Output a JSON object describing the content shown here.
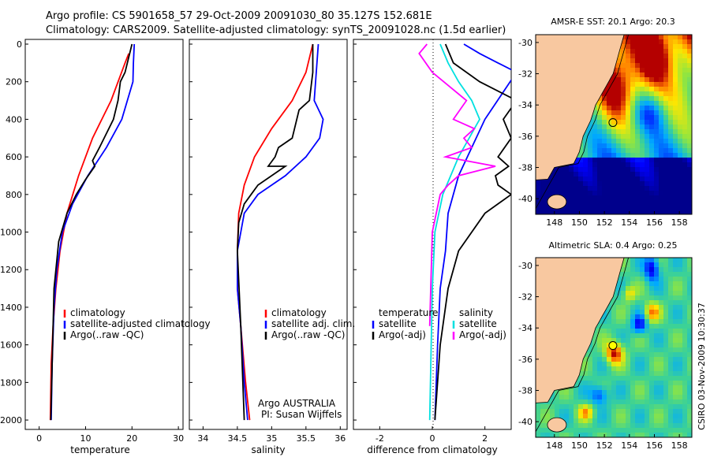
{
  "header": {
    "line1": "Argo profile: CS 5901658_57 29-Oct-2009 20091030_80 35.127S 152.681E",
    "line2": "Climatology: CARS2009. Satellite-adjusted climatology: synTS_20091028.nc (1.5d earlier)"
  },
  "chart_data": [
    {
      "type": "line",
      "id": "temperature",
      "xlabel": "temperature",
      "ylabel": "",
      "xlim": [
        -3,
        31
      ],
      "ylim": [
        0,
        2050
      ],
      "y_reversed": true,
      "xticks": [
        0,
        10,
        20,
        30
      ],
      "yticks": [
        0,
        200,
        400,
        600,
        800,
        1000,
        1200,
        1400,
        1600,
        1800,
        2000
      ],
      "legend": {
        "position": "lower-right",
        "entries": [
          "climatology",
          "satellite-adjusted climatology",
          "Argo(..raw -QC)"
        ]
      },
      "series": [
        {
          "name": "climatology",
          "color": "#ff0000",
          "x": [
            19.3,
            18.5,
            15.5,
            11.5,
            8.5,
            6.0,
            4.5,
            3.6,
            3.0,
            2.6,
            2.4
          ],
          "y": [
            50,
            100,
            300,
            500,
            700,
            900,
            1100,
            1300,
            1500,
            1700,
            2000
          ]
        },
        {
          "name": "satellite-adjusted climatology",
          "color": "#0000ff",
          "x": [
            20.5,
            20.3,
            20.2,
            17.8,
            14.5,
            10.5,
            7.2,
            5.0,
            3.8,
            3.2,
            2.8,
            2.6
          ],
          "y": [
            0,
            100,
            200,
            400,
            550,
            700,
            850,
            1000,
            1200,
            1400,
            1700,
            2000
          ]
        },
        {
          "name": "Argo(..raw -QC)",
          "color": "#000000",
          "x": [
            20.0,
            18.5,
            17.5,
            17.0,
            16.0,
            13.0,
            11.5,
            12.0,
            10.0,
            8.0,
            6.0,
            4.2,
            3.2,
            2.9,
            2.5
          ],
          "y": [
            0,
            150,
            200,
            300,
            400,
            550,
            620,
            650,
            720,
            800,
            900,
            1050,
            1300,
            1600,
            2000
          ]
        }
      ]
    },
    {
      "type": "line",
      "id": "salinity",
      "xlabel": "salinity",
      "xlim": [
        33.8,
        36.1
      ],
      "ylim": [
        0,
        2050
      ],
      "y_reversed": true,
      "xticks": [
        34,
        34.5,
        35,
        35.5,
        36
      ],
      "legend": {
        "position": "lower-right",
        "entries": [
          "climatology",
          "satellite adj. clim.",
          "Argo(..raw -QC)"
        ]
      },
      "annotation": [
        "Argo AUSTRALIA",
        "PI: Susan Wijffels"
      ],
      "series": [
        {
          "name": "climatology",
          "color": "#ff0000",
          "x": [
            35.6,
            35.5,
            35.3,
            35.0,
            34.75,
            34.6,
            34.52,
            34.5,
            34.5,
            34.55,
            34.62,
            34.68
          ],
          "y": [
            0,
            150,
            300,
            450,
            600,
            750,
            900,
            1100,
            1300,
            1500,
            1800,
            2000
          ]
        },
        {
          "name": "satellite adj. clim.",
          "color": "#0000ff",
          "x": [
            35.68,
            35.65,
            35.62,
            35.75,
            35.7,
            35.5,
            35.2,
            34.8,
            34.6,
            34.5,
            34.5,
            34.55,
            34.6,
            34.65
          ],
          "y": [
            0,
            150,
            300,
            400,
            500,
            600,
            700,
            800,
            900,
            1100,
            1300,
            1500,
            1800,
            2000
          ]
        },
        {
          "name": "Argo(..raw -QC)",
          "color": "#000000",
          "x": [
            35.6,
            35.6,
            35.55,
            35.4,
            35.3,
            35.1,
            35.05,
            34.95,
            35.2,
            34.8,
            34.7,
            34.6,
            34.52,
            34.5,
            34.55,
            34.6
          ],
          "y": [
            0,
            150,
            300,
            350,
            500,
            550,
            600,
            650,
            650,
            750,
            800,
            850,
            950,
            1100,
            1500,
            2000
          ]
        }
      ]
    },
    {
      "type": "line",
      "id": "difference",
      "xlabel": "difference from climatology",
      "xlim": [
        -3,
        3
      ],
      "ylim": [
        0,
        2050
      ],
      "y_reversed": true,
      "xticks": [
        -2,
        0,
        2
      ],
      "legend": {
        "position": "lower-center",
        "entries": [
          "temperature",
          "salinity",
          "satellite",
          "satellite",
          "Argo(-adj)",
          "Argo(-adj)"
        ]
      },
      "series": [
        {
          "name": "temperature satellite",
          "color": "#0000ff",
          "x": [
            1.2,
            1.8,
            2.5,
            3.2,
            2.0,
            1.0,
            0.6,
            0.5,
            0.3,
            0.2,
            0.1
          ],
          "y": [
            0,
            50,
            100,
            150,
            400,
            700,
            900,
            1100,
            1300,
            1600,
            2000
          ]
        },
        {
          "name": "temperature Argo(-adj)",
          "color": "#000000",
          "x": [
            0.5,
            0.8,
            1.8,
            3.2,
            2.7,
            3.0,
            2.5,
            2.9,
            2.4,
            2.5,
            3.0,
            2.0,
            1.0,
            0.6,
            0.3,
            0.1
          ],
          "y": [
            0,
            100,
            200,
            300,
            400,
            500,
            600,
            650,
            700,
            750,
            800,
            900,
            1100,
            1300,
            1600,
            2000
          ]
        },
        {
          "name": "salinity satellite",
          "color": "#00e0e0",
          "x": [
            0.3,
            0.6,
            1.0,
            1.5,
            1.8,
            1.6,
            1.4,
            1.2,
            1.0,
            0.7,
            0.4,
            0.1,
            0.0,
            -0.1
          ],
          "y": [
            0,
            100,
            200,
            300,
            400,
            450,
            500,
            550,
            600,
            700,
            800,
            1000,
            1300,
            2000
          ]
        },
        {
          "name": "salinity Argo(-adj)",
          "color": "#ff00ff",
          "x": [
            -0.2,
            -0.5,
            0.0,
            1.3,
            0.8,
            1.6,
            1.2,
            1.5,
            0.5,
            2.4,
            1.0,
            0.6,
            0.3,
            0.0,
            -0.1
          ],
          "y": [
            0,
            50,
            150,
            300,
            400,
            450,
            500,
            550,
            600,
            650,
            700,
            750,
            800,
            1000,
            1500
          ]
        }
      ]
    },
    {
      "type": "heatmap",
      "id": "sst-map",
      "title": "AMSR-E SST: 20.1 Argo: 20.3",
      "xlim": [
        146.5,
        159
      ],
      "ylim": [
        -41,
        -29.5
      ],
      "xticks": [
        148,
        150,
        152,
        154,
        156,
        158
      ],
      "yticks": [
        -30,
        -32,
        -34,
        -36,
        -38,
        -40
      ],
      "marker": {
        "lon": 152.681,
        "lat": -35.127
      }
    },
    {
      "type": "heatmap",
      "id": "sla-map",
      "title": "Altimetric SLA: 0.4 Argo: 0.25",
      "xlim": [
        146.5,
        159
      ],
      "ylim": [
        -41,
        -29.5
      ],
      "xticks": [
        148,
        150,
        152,
        154,
        156,
        158
      ],
      "yticks": [
        -30,
        -32,
        -34,
        -36,
        -38,
        -40
      ],
      "marker": {
        "lon": 152.681,
        "lat": -35.127
      }
    }
  ],
  "footer_stamp": "CSIRO 03-Nov-2009 10:30:37",
  "colors": {
    "land": "#f8c8a0",
    "coast": "#000000"
  }
}
